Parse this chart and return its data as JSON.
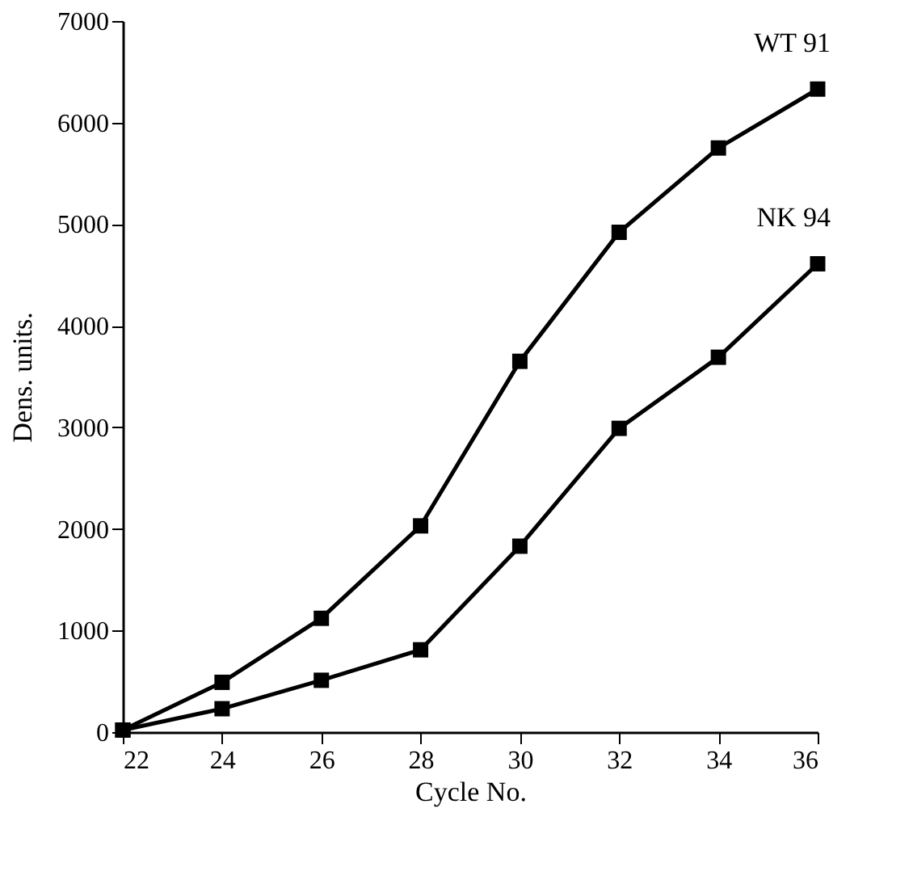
{
  "chart_data": {
    "type": "line",
    "xlabel": "Cycle No.",
    "ylabel": "Dens. units.",
    "x": [
      22,
      24,
      26,
      28,
      30,
      32,
      34,
      36
    ],
    "series": [
      {
        "name": "WT 91",
        "color": "#000000",
        "values": [
          20,
          490,
          1120,
          2030,
          3650,
          4920,
          5750,
          6330
        ]
      },
      {
        "name": "NK 94",
        "color": "#000000",
        "values": [
          20,
          230,
          510,
          810,
          1830,
          2990,
          3690,
          4610
        ]
      }
    ],
    "xlim": [
      22,
      36
    ],
    "xticks": [
      22,
      24,
      26,
      28,
      30,
      32,
      34,
      36
    ],
    "ylim": [
      0,
      7000
    ],
    "yticks": [
      0,
      1000,
      2000,
      3000,
      4000,
      5000,
      6000,
      7000
    ],
    "grid": false,
    "legend": false,
    "marker": "square",
    "line_style": "solid"
  }
}
